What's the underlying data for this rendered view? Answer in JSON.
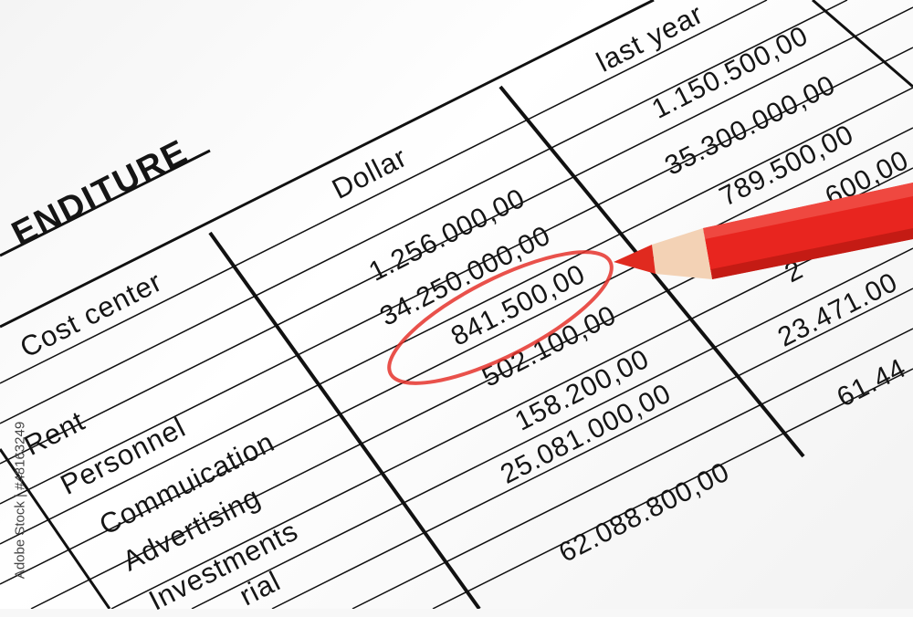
{
  "document": {
    "title": "ENDITURE",
    "headers": {
      "cost_center": "Cost center",
      "dollar": "Dollar",
      "last_year": "last year"
    },
    "rows": [
      "Rent",
      "Personnel",
      "Commuication",
      "Advertising",
      "Investments",
      "rial"
    ],
    "dollar_values": [
      "1.256.000,00",
      "34.250.000,00",
      "841.500,00",
      "502.100,00",
      "158.200,00",
      "25.081.000,00",
      "62.088.800,00"
    ],
    "last_year_values": [
      "1.150.500,00",
      "35.300.000,00",
      "789.500,00",
      "600,00",
      "2",
      "23.471.00",
      "61.44"
    ],
    "circled_value": "841.500,00"
  },
  "watermark": "Adobe Stock | #48163249",
  "colors": {
    "pencil": "#e8251f",
    "circle": "#e5322b",
    "ink": "#151515"
  }
}
